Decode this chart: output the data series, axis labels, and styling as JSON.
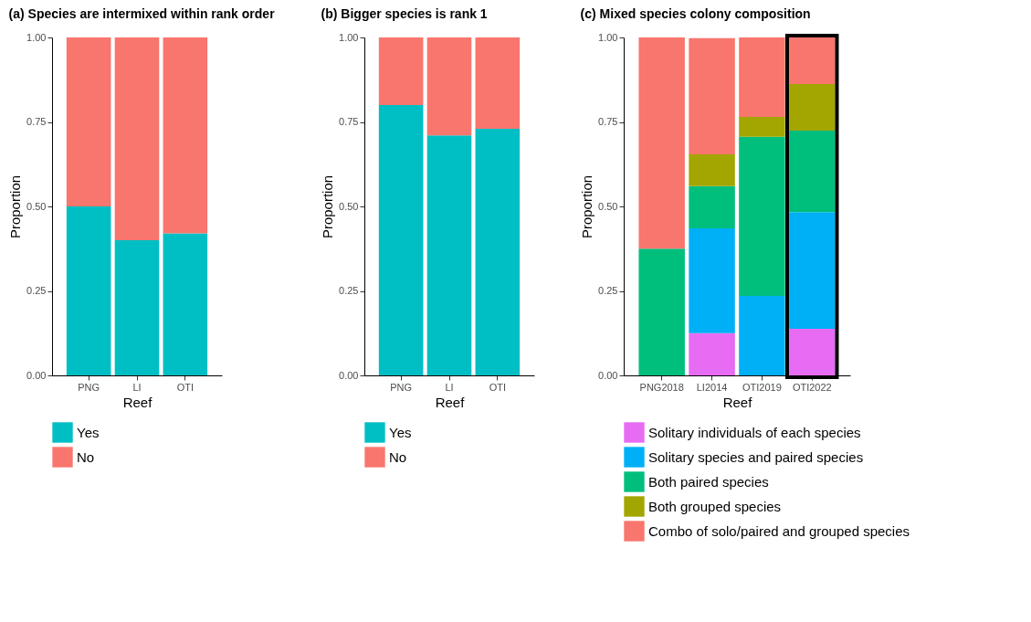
{
  "chart_data": [
    {
      "type": "bar",
      "title": "(a) Species are intermixed within rank order",
      "xlabel": "Reef",
      "ylabel": "Proportion",
      "categories": [
        "PNG",
        "LI",
        "OTI"
      ],
      "stacked": true,
      "ylim": [
        0,
        1
      ],
      "yticks": [
        {
          "value": 0,
          "label": "0.00"
        },
        {
          "value": 0.25,
          "label": "0.25"
        },
        {
          "value": 0.5,
          "label": "0.50"
        },
        {
          "value": 0.75,
          "label": "0.75"
        },
        {
          "value": 1,
          "label": "1.00"
        }
      ],
      "grid": false,
      "legend": "bottom",
      "series": [
        {
          "name": "Yes",
          "color": "#00bfc4",
          "values": [
            0.5,
            0.4,
            0.42
          ]
        },
        {
          "name": "No",
          "color": "#f8766d",
          "values": [
            0.5,
            0.6,
            0.58
          ]
        }
      ]
    },
    {
      "type": "bar",
      "title": "(b) Bigger species is rank 1",
      "xlabel": "Reef",
      "ylabel": "Proportion",
      "categories": [
        "PNG",
        "LI",
        "OTI"
      ],
      "stacked": true,
      "ylim": [
        0,
        1
      ],
      "yticks": [
        {
          "value": 0,
          "label": "0.00"
        },
        {
          "value": 0.25,
          "label": "0.25"
        },
        {
          "value": 0.5,
          "label": "0.50"
        },
        {
          "value": 0.75,
          "label": "0.75"
        },
        {
          "value": 1,
          "label": "1.00"
        }
      ],
      "grid": false,
      "legend": "bottom",
      "series": [
        {
          "name": "Yes",
          "color": "#00bfc4",
          "values": [
            0.8,
            0.71,
            0.73
          ]
        },
        {
          "name": "No",
          "color": "#f8766d",
          "values": [
            0.2,
            0.29,
            0.27
          ]
        }
      ]
    },
    {
      "type": "bar",
      "title": "(c) Mixed species colony composition",
      "xlabel": "Reef",
      "ylabel": "Proportion",
      "categories": [
        "PNG2018",
        "LI2014",
        "OTI2019",
        "OTI2022"
      ],
      "stacked": true,
      "ylim": [
        0,
        1
      ],
      "yticks": [
        {
          "value": 0,
          "label": "0.00"
        },
        {
          "value": 0.25,
          "label": "0.25"
        },
        {
          "value": 0.5,
          "label": "0.50"
        },
        {
          "value": 0.75,
          "label": "0.75"
        },
        {
          "value": 1,
          "label": "1.00"
        }
      ],
      "grid": false,
      "legend": "bottom",
      "series": [
        {
          "name": "Solitary individuals of each species",
          "color": "#e76bf3",
          "values": [
            0,
            0.125,
            0,
            0.138
          ]
        },
        {
          "name": "Solitary species and paired species",
          "color": "#00b0f6",
          "values": [
            0,
            0.31,
            0.235,
            0.345
          ]
        },
        {
          "name": "Both paired species",
          "color": "#00bf7d",
          "values": [
            0.375,
            0.125,
            0.471,
            0.241
          ]
        },
        {
          "name": "Both grouped species",
          "color": "#a3a500",
          "values": [
            0,
            0.094,
            0.059,
            0.138
          ]
        },
        {
          "name": "Combo of solo/paired and grouped species",
          "color": "#f8766d",
          "values": [
            0.625,
            0.344,
            0.235,
            0.138
          ]
        }
      ]
    }
  ]
}
